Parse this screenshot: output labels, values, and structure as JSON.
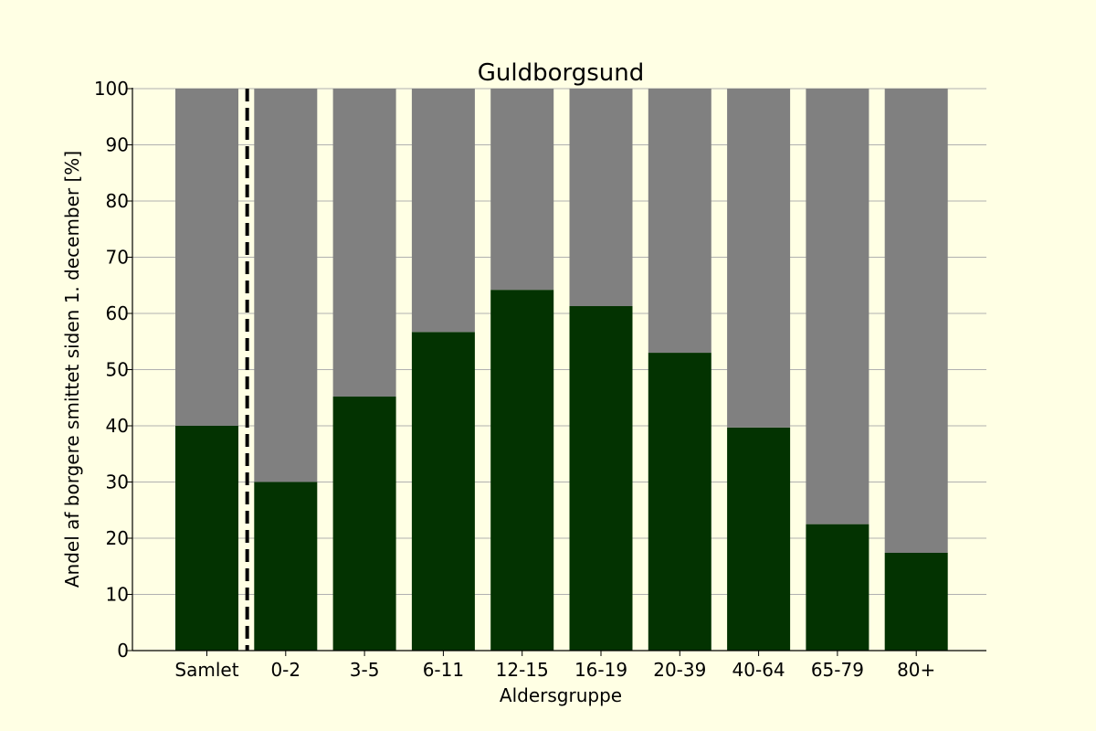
{
  "colors": {
    "background": "#FFFFE4",
    "infected": "#033301",
    "remainder": "#808080",
    "grid": "#b0b0b0",
    "axis": "#000000",
    "separator_line": "#000000"
  },
  "chart_data": {
    "type": "bar",
    "stacked": true,
    "title": "Guldborgsund",
    "xlabel": "Aldersgruppe",
    "ylabel": "Andel af borgere smittet siden 1. december [%]",
    "ylim": [
      0,
      100
    ],
    "yticks": [
      0,
      10,
      20,
      30,
      40,
      50,
      60,
      70,
      80,
      90,
      100
    ],
    "grid": "horizontal",
    "categories": [
      "Samlet",
      "0-2",
      "3-5",
      "6-11",
      "12-15",
      "16-19",
      "20-39",
      "40-64",
      "65-79",
      "80+"
    ],
    "series": [
      {
        "values": [
          40,
          30,
          45.2,
          56.7,
          64.2,
          61.3,
          53,
          39.7,
          22.5,
          17.4
        ],
        "color": "#033301"
      },
      {
        "values": [
          60,
          70,
          54.8,
          43.3,
          35.8,
          38.7,
          47,
          60.3,
          77.5,
          82.6
        ],
        "color": "#808080"
      }
    ],
    "separator": {
      "style": "dashed vertical line",
      "between": [
        "Samlet",
        "0-2"
      ]
    }
  }
}
